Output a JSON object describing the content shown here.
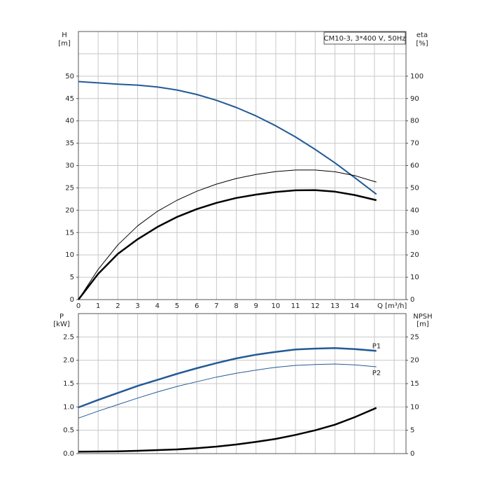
{
  "chart_data": [
    {
      "type": "line",
      "title": "CM10-3, 3*400 V, 50Hz",
      "x_label": "Q [m³/h]",
      "y_label": "H",
      "y_unit": "[m]",
      "y2_label": "eta",
      "y2_unit": "[%]",
      "xlim": [
        0,
        16.6
      ],
      "xticks": [
        0,
        1,
        2,
        3,
        4,
        5,
        6,
        7,
        8,
        9,
        10,
        11,
        12,
        13,
        14
      ],
      "ylim": [
        0,
        60
      ],
      "yticks": [
        0,
        5,
        10,
        15,
        20,
        25,
        30,
        35,
        40,
        45,
        50
      ],
      "y2lim": [
        0,
        120
      ],
      "y2ticks": [
        0,
        10,
        20,
        30,
        40,
        50,
        60,
        70,
        80,
        90,
        100
      ],
      "grid": true,
      "x": [
        0,
        1,
        2,
        3,
        4,
        5,
        6,
        7,
        8,
        9,
        10,
        11,
        12,
        13,
        14,
        15.1
      ],
      "series": [
        {
          "color": "#235a96",
          "linewidth": 2,
          "values": [
            48.8,
            48.5,
            48.2,
            48.0,
            47.6,
            46.9,
            45.9,
            44.6,
            43.0,
            41.1,
            38.9,
            36.4,
            33.6,
            30.6,
            27.3,
            23.6
          ]
        },
        {
          "color": "#000000",
          "linewidth": 1,
          "axis": "y2",
          "values": [
            0,
            13.5,
            24.5,
            33,
            39.5,
            44.5,
            48.5,
            51.7,
            54.2,
            56,
            57.3,
            58,
            58,
            57.2,
            55.5,
            52.6
          ]
        },
        {
          "color": "#000000",
          "linewidth": 2.5,
          "axis": "y2",
          "values": [
            0,
            11.5,
            20.5,
            27,
            32.5,
            37,
            40.5,
            43.3,
            45.5,
            47,
            48.2,
            48.9,
            49,
            48.3,
            46.8,
            44.5
          ]
        }
      ]
    },
    {
      "type": "line",
      "y_label": "P",
      "y_unit": "[kW]",
      "y2_label": "NPSH",
      "y2_unit": "[m]",
      "xlim": [
        0,
        16.6
      ],
      "ylim": [
        0,
        3
      ],
      "yticks": [
        {
          "value": 0,
          "label": "0.0"
        },
        0.5,
        {
          "value": 1,
          "label": "1.0"
        },
        1.5,
        {
          "value": 2,
          "label": "2.0"
        },
        2.5
      ],
      "y2lim": [
        0,
        30
      ],
      "y2ticks": [
        0,
        5,
        10,
        15,
        20,
        25
      ],
      "grid": true,
      "x": [
        0,
        1,
        2,
        3,
        4,
        5,
        6,
        7,
        8,
        9,
        10,
        11,
        12,
        13,
        14,
        15.1
      ],
      "series": [
        {
          "name": "P1",
          "color": "#235a96",
          "linewidth": 2.5,
          "values": [
            0.99,
            1.15,
            1.3,
            1.45,
            1.58,
            1.71,
            1.83,
            1.94,
            2.04,
            2.12,
            2.18,
            2.23,
            2.25,
            2.26,
            2.24,
            2.2
          ]
        },
        {
          "name": "P2",
          "color": "#235a96",
          "linewidth": 1,
          "values": [
            0.76,
            0.91,
            1.05,
            1.19,
            1.32,
            1.44,
            1.54,
            1.64,
            1.72,
            1.79,
            1.85,
            1.89,
            1.91,
            1.92,
            1.9,
            1.86
          ]
        },
        {
          "color": "#000000",
          "linewidth": 2.5,
          "axis": "y2",
          "values": [
            0.4,
            0.45,
            0.5,
            0.6,
            0.75,
            0.9,
            1.15,
            1.5,
            1.95,
            2.5,
            3.15,
            4.0,
            5.0,
            6.2,
            7.8,
            9.8
          ]
        }
      ]
    }
  ]
}
